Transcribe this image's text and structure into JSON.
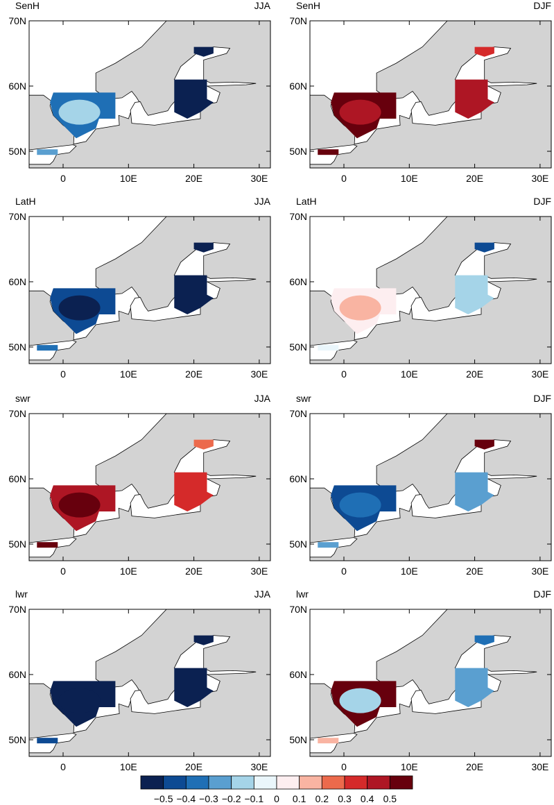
{
  "panels": [
    {
      "variable": "SenH",
      "season": "JJA"
    },
    {
      "variable": "SenH",
      "season": "DJF"
    },
    {
      "variable": "LatH",
      "season": "JJA"
    },
    {
      "variable": "LatH",
      "season": "DJF"
    },
    {
      "variable": "swr",
      "season": "JJA"
    },
    {
      "variable": "swr",
      "season": "DJF"
    },
    {
      "variable": "lwr",
      "season": "JJA"
    },
    {
      "variable": "lwr",
      "season": "DJF"
    }
  ],
  "lat_ticks": [
    "70N",
    "60N",
    "50N"
  ],
  "lon_ticks": [
    "0",
    "10E",
    "20E",
    "30E"
  ],
  "colorbar": {
    "colors": [
      "#0b2151",
      "#0d4a93",
      "#1f6fb5",
      "#5a9fd0",
      "#a5d4e8",
      "#eaf6fb",
      "#fdeef0",
      "#f9b4a2",
      "#ec6a4c",
      "#d52a2a",
      "#ae1624",
      "#67000d"
    ],
    "labels": [
      "−0.5",
      "−0.4",
      "−0.3",
      "−0.2",
      "−0.1",
      "0",
      "0.1",
      "0.2",
      "0.3",
      "0.4",
      "0.5"
    ]
  }
}
